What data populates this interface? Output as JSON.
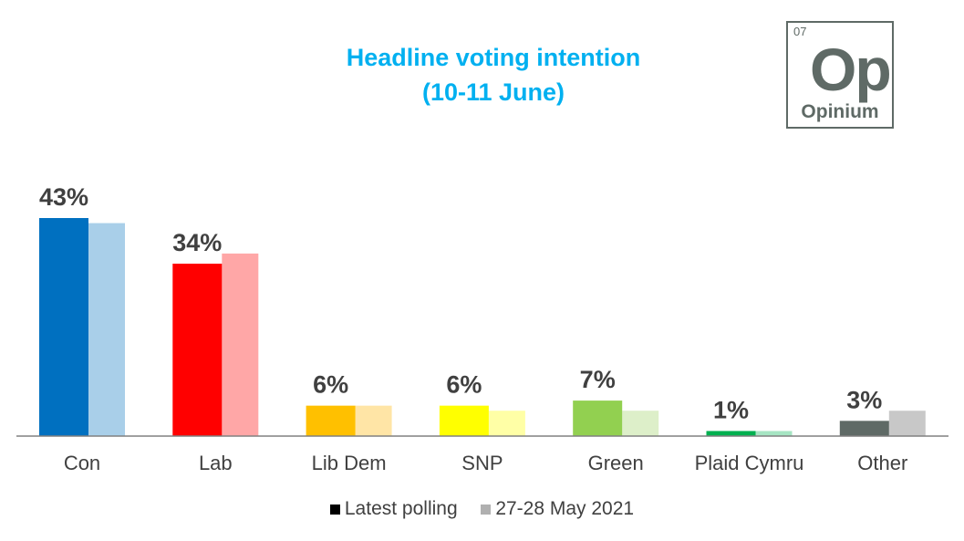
{
  "chart_data": {
    "type": "bar",
    "title": "Headline voting intention",
    "subtitle": "(10-11 June)",
    "categories": [
      "Con",
      "Lab",
      "Lib Dem",
      "SNP",
      "Green",
      "Plaid Cymru",
      "Other"
    ],
    "series": [
      {
        "name": "Latest polling",
        "values": [
          43,
          34,
          6,
          6,
          7,
          1,
          3
        ],
        "colors": [
          "#0070C0",
          "#FF0000",
          "#FFC000",
          "#FFFF00",
          "#92D050",
          "#00B050",
          "#5F6A66"
        ],
        "legend_color": "#000000"
      },
      {
        "name": "27-28 May 2021",
        "values": [
          42,
          36,
          6,
          5,
          5,
          1,
          5
        ],
        "colors": [
          "#A9CFE9",
          "#FFA7A7",
          "#FFE5A6",
          "#FFFFA6",
          "#DDEFC9",
          "#A6E5C3",
          "#C8C8C8"
        ],
        "legend_color": "#B0B0B0"
      }
    ],
    "data_labels": [
      "43%",
      "34%",
      "6%",
      "6%",
      "7%",
      "1%",
      "3%"
    ],
    "ylim": [
      0,
      43
    ],
    "grid": false,
    "legend_position": "bottom"
  },
  "logo": {
    "number": "07",
    "symbol": "Op",
    "name": "Opinium"
  }
}
